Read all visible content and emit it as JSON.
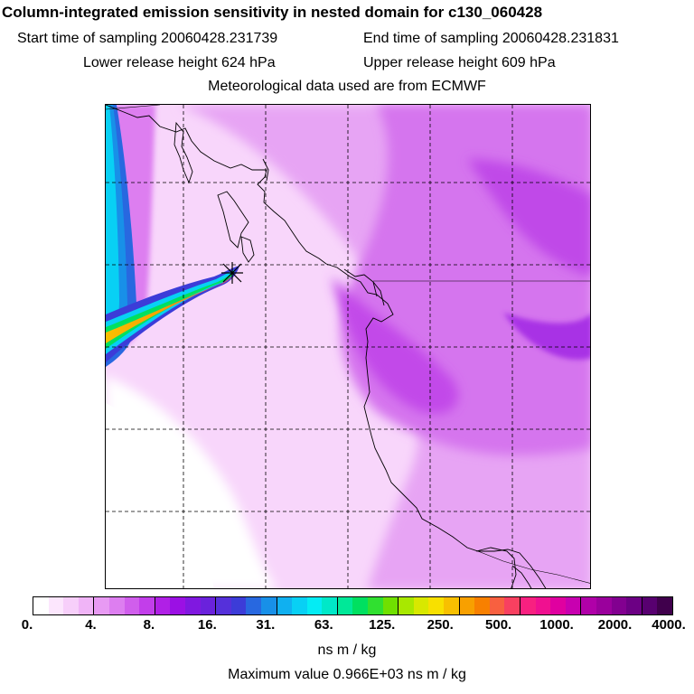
{
  "header": {
    "title": "Column-integrated emission sensitivity in nested domain for c130_060428",
    "start_label": "Start time of sampling 20060428.231739",
    "end_label": "End time of sampling 20060428.231831",
    "lower_label": "Lower release height  624 hPa",
    "upper_label": "Upper release height  609 hPa",
    "met_label": "Meteorological data used are from ECMWF"
  },
  "colorbar": {
    "tick_labels": [
      "0.",
      "4.",
      "8.",
      "16.",
      "31.",
      "63.",
      "125.",
      "250.",
      "500.",
      "1000.",
      "2000.",
      "4000."
    ],
    "colors": [
      "#ffffff",
      "#fce6fd",
      "#f7cffa",
      "#f0b4f7",
      "#e89af3",
      "#dd7ef0",
      "#d05eec",
      "#c23eea",
      "#b020e6",
      "#9b10e4",
      "#8018e0",
      "#6a22dc",
      "#5530da",
      "#3c3cd8",
      "#2868e0",
      "#1890e8",
      "#10b0f0",
      "#08d0f4",
      "#04ecf4",
      "#00e8c8",
      "#00e898",
      "#00e060",
      "#30e030",
      "#70e000",
      "#a8e800",
      "#d8e800",
      "#f8e000",
      "#f8c000",
      "#f8a000",
      "#f88000",
      "#f86040",
      "#f84060",
      "#f82080",
      "#f01090",
      "#e000a0",
      "#c800b0",
      "#b000a8",
      "#9a009c",
      "#820090",
      "#6c0084",
      "#580070",
      "#40004c"
    ],
    "units": "ns m / kg",
    "max_value_label": "Maximum value  0.966E+03 ns m / kg"
  },
  "map": {
    "release_marker": "release-point-star",
    "meteorology": "ECMWF"
  }
}
